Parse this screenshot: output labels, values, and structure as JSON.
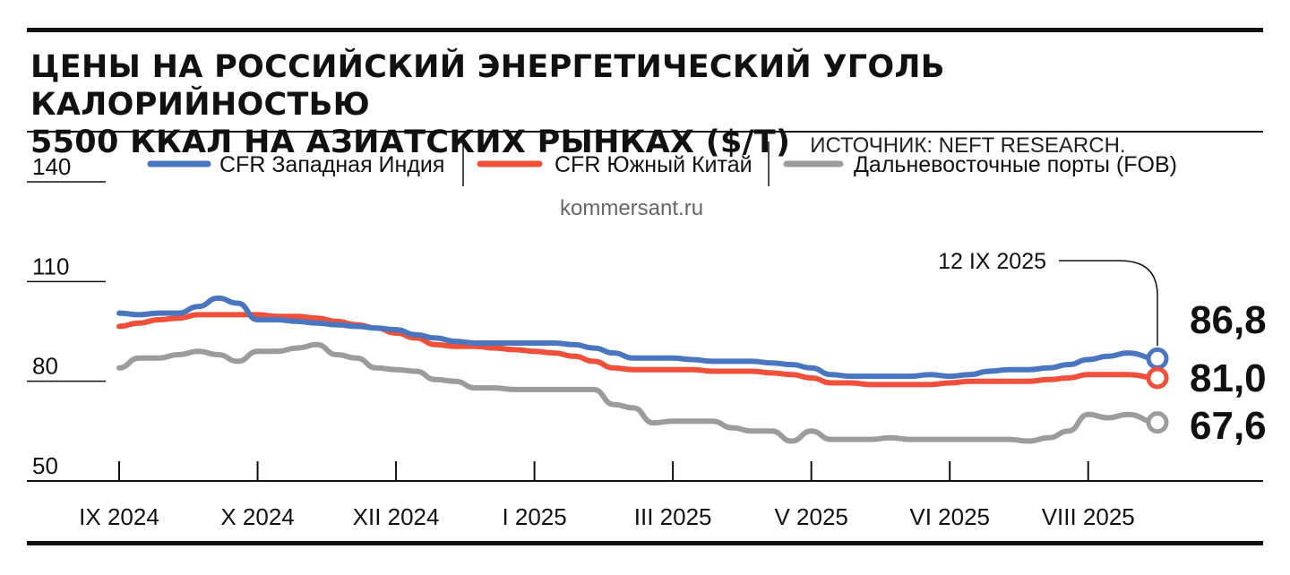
{
  "title_line1": "ЦЕНЫ НА РОССИЙСКИЙ ЭНЕРГЕТИЧЕСКИЙ УГОЛЬ КАЛОРИЙНОСТЬЮ",
  "title_line2": "5500 ККАЛ НА АЗИАТСКИХ РЫНКАХ ($/Т)",
  "source": "ИСТОЧНИК: NEFT RESEARCH.",
  "watermark": "kommersant.ru",
  "annotation": "12 IX 2025",
  "colors": {
    "blue": "#4a76c0",
    "red": "#f0503a",
    "gray": "#9c9c9c",
    "text": "#111111"
  },
  "chart_data": {
    "type": "line",
    "ylim": [
      50,
      140
    ],
    "yticks": [
      "140",
      "110",
      "80",
      "50"
    ],
    "ytick_values": [
      140,
      110,
      80,
      50
    ],
    "x_range": [
      0,
      52.5
    ],
    "xticks": [
      {
        "label": "IX 2024",
        "week": 0
      },
      {
        "label": "X 2024",
        "week": 7
      },
      {
        "label": "XII 2024",
        "week": 14
      },
      {
        "label": "I 2025",
        "week": 21
      },
      {
        "label": "III 2025",
        "week": 28
      },
      {
        "label": "V 2025",
        "week": 35
      },
      {
        "label": "VI 2025",
        "week": 42
      },
      {
        "label": "VIII 2025",
        "week": 49
      }
    ],
    "legend": [
      "CFR Западная Индия",
      "CFR Южный Китай",
      "Дальневосточные порты (FOB)"
    ],
    "series": [
      {
        "name": "CFR Западная Индия",
        "color": "#4a76c0",
        "end_label": "86,8",
        "x": [
          0,
          1,
          2,
          3,
          4,
          5,
          6,
          7,
          8,
          9,
          10,
          11,
          12,
          13,
          14,
          15,
          16,
          17,
          18,
          19,
          20,
          21,
          22,
          23,
          24,
          25,
          26,
          27,
          28,
          29,
          30,
          31,
          32,
          33,
          34,
          35,
          36,
          37,
          38,
          39,
          40,
          41,
          42,
          43,
          44,
          45,
          46,
          47,
          48,
          49,
          50,
          51,
          52.5
        ],
        "values": [
          100.5,
          100,
          100.5,
          100.5,
          102.5,
          105,
          103.5,
          98.5,
          98.5,
          98,
          97.5,
          97,
          96.5,
          96,
          95.5,
          94,
          93,
          92,
          91.5,
          91.5,
          91.5,
          91.5,
          91.5,
          91,
          90,
          88.5,
          87,
          87,
          87,
          86.5,
          86,
          86,
          86,
          85.5,
          85,
          84,
          82,
          81.5,
          81.5,
          81.5,
          81.5,
          82,
          81.5,
          82,
          83,
          83.5,
          83.5,
          84,
          85,
          86.5,
          87.5,
          88.5,
          86.8
        ]
      },
      {
        "name": "CFR Южный Китай",
        "color": "#f0503a",
        "end_label": "81,0",
        "x": [
          0,
          1,
          2,
          3,
          4,
          5,
          6,
          7,
          8,
          9,
          10,
          11,
          12,
          13,
          14,
          15,
          16,
          17,
          18,
          19,
          20,
          21,
          22,
          23,
          24,
          25,
          26,
          27,
          28,
          29,
          30,
          31,
          32,
          33,
          34,
          35,
          36,
          37,
          38,
          39,
          40,
          41,
          42,
          43,
          44,
          45,
          46,
          47,
          48,
          49,
          50,
          51,
          52.5
        ],
        "values": [
          96.5,
          97.5,
          98.5,
          99,
          100,
          100,
          100,
          100,
          99.5,
          99.5,
          99,
          98,
          97,
          96,
          94.5,
          93,
          91,
          90.5,
          90.5,
          90,
          89.5,
          89,
          88.5,
          87.5,
          86,
          84,
          83.5,
          83.5,
          83.5,
          83.5,
          83,
          83,
          83,
          82.5,
          82,
          81,
          79.5,
          79.5,
          79,
          79,
          79,
          79,
          79.5,
          80,
          80,
          80,
          80,
          80.5,
          81,
          82,
          82,
          82,
          81.0
        ]
      },
      {
        "name": "Дальневосточные порты (FOB)",
        "color": "#9c9c9c",
        "end_label": "67,6",
        "x": [
          0,
          1,
          2,
          3,
          4,
          5,
          6,
          7,
          8,
          9,
          10,
          11,
          12,
          13,
          14,
          15,
          16,
          17,
          18,
          19,
          20,
          21,
          22,
          23,
          24,
          25,
          26,
          27,
          28,
          29,
          30,
          31,
          32,
          33,
          34,
          35,
          36,
          37,
          38,
          39,
          40,
          41,
          42,
          43,
          44,
          45,
          46,
          47,
          48,
          49,
          50,
          51,
          52.5
        ],
        "values": [
          84,
          87,
          87,
          88,
          89,
          88,
          86,
          89,
          89,
          90,
          91,
          88,
          87,
          84,
          83.5,
          83,
          80.5,
          80,
          78,
          78,
          77.5,
          77.5,
          77.5,
          77.5,
          77.5,
          73,
          72,
          67.5,
          68,
          68,
          68,
          66,
          65,
          65,
          62,
          65,
          62.5,
          62.5,
          62.5,
          63,
          62.5,
          62.5,
          62.5,
          62.5,
          62.5,
          62.5,
          62,
          63,
          65,
          70,
          69,
          70,
          67.6
        ]
      }
    ]
  }
}
